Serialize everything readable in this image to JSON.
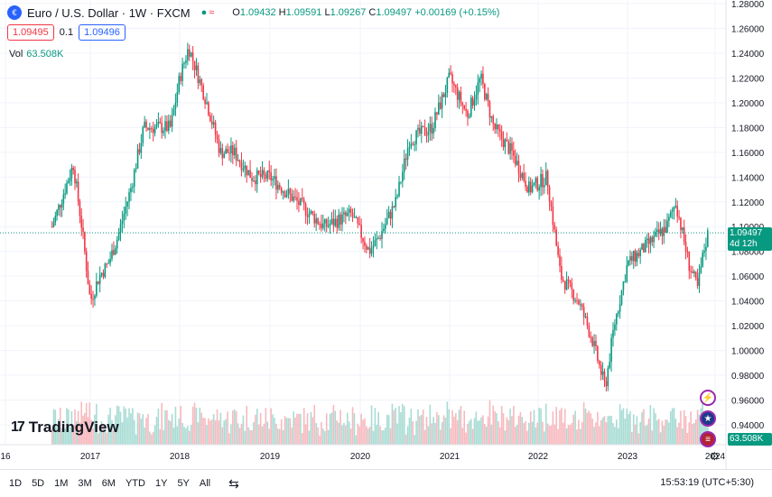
{
  "header": {
    "symbol_icon": "euro-flag-icon",
    "title": "Euro / U.S. Dollar · 1W · FXCM",
    "open_label": "O",
    "open": "1.09432",
    "high_label": "H",
    "high": "1.09591",
    "low_label": "L",
    "low": "1.09267",
    "close_label": "C",
    "close": "1.09497",
    "change": "+0.00169 (+0.15%)",
    "sell_price": "1.09495",
    "spread": "0.1",
    "buy_price": "1.09496",
    "vol_label": "Vol",
    "vol_value": "63.508K"
  },
  "price_axis": {
    "ticks": [
      "1.28000",
      "1.26000",
      "1.24000",
      "1.22000",
      "1.20000",
      "1.18000",
      "1.16000",
      "1.14000",
      "1.12000",
      "1.10000",
      "1.08000",
      "1.06000",
      "1.04000",
      "1.02000",
      "1.00000",
      "0.98000",
      "0.96000",
      "0.94000"
    ],
    "current_price": "1.09497",
    "countdown": "4d 12h",
    "volume_badge": "63.508K"
  },
  "time_axis": {
    "ticks": [
      "16",
      "2017",
      "2018",
      "2019",
      "2020",
      "2021",
      "2022",
      "2023",
      "2024"
    ]
  },
  "brand": {
    "logo_icon": "tradingview-logo-icon",
    "name": "TradingView"
  },
  "bottom_bar": {
    "timeframes": [
      "1D",
      "5D",
      "1M",
      "3M",
      "6M",
      "YTD",
      "1Y",
      "5Y",
      "All"
    ],
    "calendar_icon": "calendar-range-icon",
    "clock": "15:53:19 (UTC+5:30)",
    "settings_icon": "gear-icon"
  },
  "side_icons": [
    "lightning-icon",
    "eu-flag-icon",
    "us-flag-icon"
  ],
  "colors": {
    "up": "#089981",
    "down": "#f23645",
    "accent": "#2962ff",
    "grid": "#f0f3fa"
  },
  "chart_data": {
    "type": "candlestick",
    "interval": "1W",
    "ylim": [
      0.94,
      1.285
    ],
    "x_axis_labels": [
      "16",
      "2017",
      "2018",
      "2019",
      "2020",
      "2021",
      "2022",
      "2023",
      "2024"
    ],
    "price_path_approx": [
      {
        "x": "2016.55",
        "y": 1.1
      },
      {
        "x": "2016.7",
        "y": 1.13
      },
      {
        "x": "2016.8",
        "y": 1.15
      },
      {
        "x": "2016.9",
        "y": 1.1
      },
      {
        "x": "2017.0",
        "y": 1.04
      },
      {
        "x": "2017.1",
        "y": 1.06
      },
      {
        "x": "2017.2",
        "y": 1.07
      },
      {
        "x": "2017.3",
        "y": 1.09
      },
      {
        "x": "2017.45",
        "y": 1.13
      },
      {
        "x": "2017.6",
        "y": 1.18
      },
      {
        "x": "2017.75",
        "y": 1.18
      },
      {
        "x": "2017.9",
        "y": 1.18
      },
      {
        "x": "2018.0",
        "y": 1.22
      },
      {
        "x": "2018.1",
        "y": 1.245
      },
      {
        "x": "2018.3",
        "y": 1.2
      },
      {
        "x": "2018.45",
        "y": 1.16
      },
      {
        "x": "2018.6",
        "y": 1.16
      },
      {
        "x": "2018.8",
        "y": 1.14
      },
      {
        "x": "2019.0",
        "y": 1.14
      },
      {
        "x": "2019.3",
        "y": 1.12
      },
      {
        "x": "2019.6",
        "y": 1.1
      },
      {
        "x": "2019.9",
        "y": 1.11
      },
      {
        "x": "2020.1",
        "y": 1.08
      },
      {
        "x": "2020.2",
        "y": 1.09
      },
      {
        "x": "2020.4",
        "y": 1.12
      },
      {
        "x": "2020.55",
        "y": 1.17
      },
      {
        "x": "2020.8",
        "y": 1.18
      },
      {
        "x": "2021.0",
        "y": 1.22
      },
      {
        "x": "2021.2",
        "y": 1.19
      },
      {
        "x": "2021.35",
        "y": 1.22
      },
      {
        "x": "2021.5",
        "y": 1.18
      },
      {
        "x": "2021.7",
        "y": 1.16
      },
      {
        "x": "2021.9",
        "y": 1.13
      },
      {
        "x": "2022.1",
        "y": 1.14
      },
      {
        "x": "2022.25",
        "y": 1.06
      },
      {
        "x": "2022.45",
        "y": 1.04
      },
      {
        "x": "2022.6",
        "y": 1.01
      },
      {
        "x": "2022.75",
        "y": 0.97
      },
      {
        "x": "2022.85",
        "y": 1.02
      },
      {
        "x": "2023.0",
        "y": 1.07
      },
      {
        "x": "2023.15",
        "y": 1.08
      },
      {
        "x": "2023.3",
        "y": 1.09
      },
      {
        "x": "2023.45",
        "y": 1.1
      },
      {
        "x": "2023.55",
        "y": 1.12
      },
      {
        "x": "2023.7",
        "y": 1.07
      },
      {
        "x": "2023.8",
        "y": 1.05
      },
      {
        "x": "2023.87",
        "y": 1.08
      },
      {
        "x": "2023.92",
        "y": 1.095
      }
    ],
    "last_price": 1.09497,
    "volume_last": "63.508K",
    "grid": true
  }
}
